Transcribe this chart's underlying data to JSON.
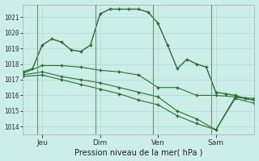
{
  "bg_color": "#cceee8",
  "grid_color": "#aaddcc",
  "line_color": "#2d6b2d",
  "marker_color": "#2d6b2d",
  "xlabel": "Pression niveau de la mer( hPa )",
  "ylabel_ticks": [
    1014,
    1015,
    1016,
    1017,
    1018,
    1019,
    1020,
    1021
  ],
  "ylim": [
    1013.5,
    1021.8
  ],
  "xlim": [
    0,
    96
  ],
  "xtick_positions": [
    8,
    32,
    56,
    80
  ],
  "xtick_labels": [
    "Jeu",
    "Dim",
    "Ven",
    "Sam"
  ],
  "vline_positions": [
    6,
    30,
    54,
    78
  ],
  "series1_x": [
    0,
    4,
    8,
    12,
    16,
    20,
    24,
    28,
    32,
    36,
    40,
    44,
    48,
    52,
    56,
    60,
    64,
    68,
    72,
    76,
    80,
    84,
    88,
    92,
    96
  ],
  "series1_y": [
    1017.5,
    1017.7,
    1019.2,
    1019.6,
    1019.4,
    1018.9,
    1018.8,
    1019.2,
    1021.2,
    1021.5,
    1021.5,
    1021.5,
    1021.5,
    1021.3,
    1020.6,
    1019.2,
    1017.7,
    1018.3,
    1018.0,
    1017.8,
    1016.2,
    1016.1,
    1016.0,
    1015.8,
    1015.7
  ],
  "series2_x": [
    0,
    8,
    16,
    24,
    32,
    40,
    48,
    56,
    64,
    72,
    80,
    88,
    96
  ],
  "series2_y": [
    1017.4,
    1017.9,
    1017.9,
    1017.8,
    1017.6,
    1017.5,
    1017.3,
    1016.5,
    1016.5,
    1016.0,
    1016.0,
    1015.9,
    1015.8
  ],
  "series3_x": [
    0,
    8,
    16,
    24,
    32,
    40,
    48,
    56,
    64,
    72,
    80,
    88,
    96
  ],
  "series3_y": [
    1017.3,
    1017.5,
    1017.2,
    1017.0,
    1016.8,
    1016.5,
    1016.2,
    1015.9,
    1015.0,
    1014.5,
    1013.8,
    1015.9,
    1015.7
  ],
  "series4_x": [
    0,
    8,
    16,
    24,
    32,
    40,
    48,
    56,
    64,
    72,
    80,
    88,
    96
  ],
  "series4_y": [
    1017.2,
    1017.3,
    1017.0,
    1016.7,
    1016.4,
    1016.1,
    1015.7,
    1015.4,
    1014.7,
    1014.2,
    1013.8,
    1015.8,
    1015.5
  ]
}
